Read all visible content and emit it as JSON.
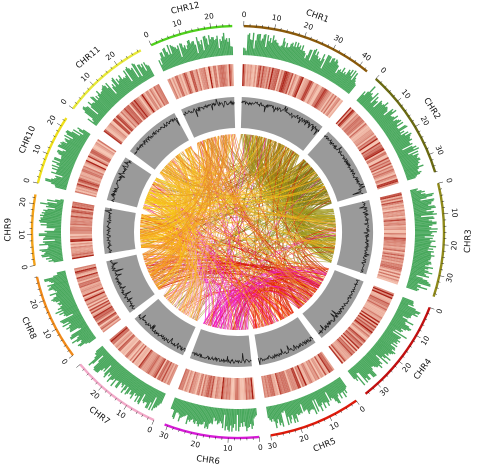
{
  "chromosomes": [
    {
      "name": "CHR1",
      "length": 43,
      "color": "#8B5A0A",
      "ribbon": "#9A6A0C",
      "ticks": [
        "0",
        "10",
        "20",
        "30",
        "40"
      ]
    },
    {
      "name": "CHR2",
      "length": 36,
      "color": "#6B6B12",
      "ribbon": "#7C7A16",
      "ticks": [
        "0",
        "10",
        "20",
        "30"
      ]
    },
    {
      "name": "CHR3",
      "length": 37,
      "color": "#8F8A1A",
      "ribbon": "#A49E22",
      "ticks": [
        "0",
        "10",
        "20",
        "30"
      ]
    },
    {
      "name": "CHR4",
      "length": 35,
      "color": "#C40F0F",
      "ribbon": "#D41A0A",
      "ticks": [
        "0",
        "10",
        "20",
        "30"
      ]
    },
    {
      "name": "CHR5",
      "length": 30,
      "color": "#E01A0A",
      "ribbon": "#EE2A08",
      "ticks": [
        "0",
        "10",
        "20",
        "30"
      ]
    },
    {
      "name": "CHR6",
      "length": 31,
      "color": "#D61BD6",
      "ribbon": "#F01CCF",
      "ticks": [
        "0",
        "10",
        "20",
        "30"
      ]
    },
    {
      "name": "CHR7",
      "length": 30,
      "color": "#F2A9C8",
      "ribbon": "#F5B3CF",
      "ticks": [
        "0",
        "10",
        "20"
      ]
    },
    {
      "name": "CHR8",
      "length": 28,
      "color": "#F08A1A",
      "ribbon": "#F5901E",
      "ticks": [
        "0",
        "10",
        "20"
      ]
    },
    {
      "name": "CHR9",
      "length": 23,
      "color": "#F2A21A",
      "ribbon": "#F8AE14",
      "ticks": [
        "0",
        "10",
        "20"
      ]
    },
    {
      "name": "CHR10",
      "length": 23,
      "color": "#F0E01A",
      "ribbon": "#F7CF12",
      "ticks": [
        "0",
        "10",
        "20"
      ]
    },
    {
      "name": "CHR11",
      "length": 29,
      "color": "#E7E83A",
      "ribbon": "#F4B520",
      "ticks": [
        "0",
        "10",
        "20"
      ]
    },
    {
      "name": "CHR12",
      "length": 27,
      "color": "#4FD11C",
      "ribbon": "#E58A2A",
      "ticks": [
        "0",
        "10",
        "20"
      ]
    }
  ],
  "tracks": {
    "density_color": "#48A85C",
    "heat_low": "#F7C7B4",
    "heat_high": "#A81B10",
    "line_fill": "#9A9A9A",
    "line_stroke": "#1A1A1A"
  }
}
